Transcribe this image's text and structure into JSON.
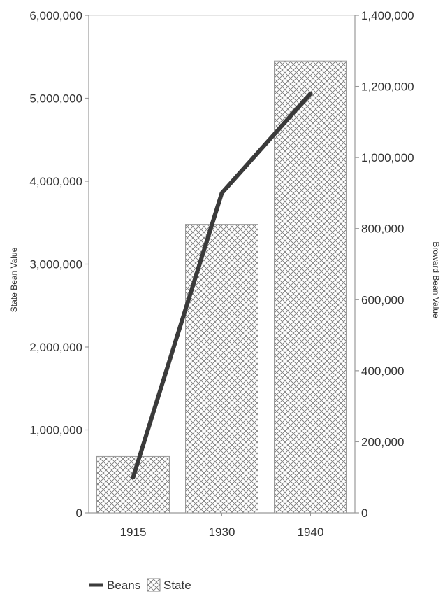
{
  "chart_data": {
    "type": "bar",
    "categories": [
      "1915",
      "1930",
      "1940"
    ],
    "series": [
      {
        "name": "State",
        "type": "bar",
        "axis": "left",
        "values": [
          680000,
          3480000,
          5450000
        ]
      },
      {
        "name": "Beans",
        "type": "line",
        "axis": "right",
        "values": [
          100000,
          900000,
          1180000
        ]
      }
    ],
    "ylabel": "State Bean Value",
    "y2label": "Broward Bean Value",
    "ylim": [
      0,
      6000000
    ],
    "y2lim": [
      0,
      1400000
    ],
    "yticks": [
      "0",
      "1,000,000",
      "2,000,000",
      "3,000,000",
      "4,000,000",
      "5,000,000",
      "6,000,000"
    ],
    "y2ticks": [
      "0",
      "200,000",
      "400,000",
      "600,000",
      "800,000",
      "1,000,000",
      "1,200,000",
      "1,400,000"
    ],
    "legend": {
      "position": "bottom-left",
      "items": [
        "Beans",
        "State"
      ]
    },
    "grid": false,
    "colors": {
      "line": "#3a3a3a",
      "bar_fill": "#ffffff",
      "bar_hatch": "#777777",
      "axis": "#999999"
    }
  }
}
